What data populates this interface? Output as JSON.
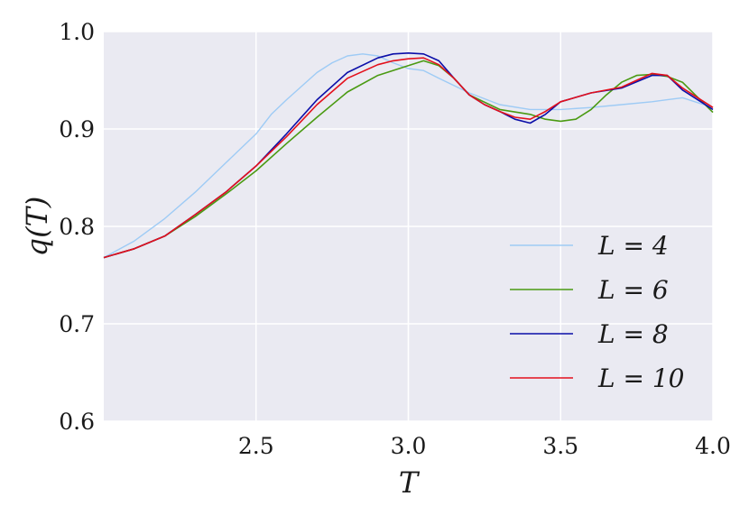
{
  "chart_data": {
    "type": "line",
    "title": "",
    "xlabel": "T",
    "ylabel": "q(T)",
    "xlim": [
      2.0,
      4.0
    ],
    "ylim": [
      0.6,
      1.0
    ],
    "xticks": [
      2.5,
      3.0,
      3.5,
      4.0
    ],
    "xtick_labels": [
      "2.5",
      "3.0",
      "3.5",
      "4.0"
    ],
    "yticks": [
      0.6,
      0.7,
      0.8,
      0.9,
      1.0
    ],
    "ytick_labels": [
      "0.6",
      "0.7",
      "0.8",
      "0.9",
      "1.0"
    ],
    "grid": true,
    "background": "#eaeaf2",
    "grid_color": "#ffffff",
    "legend_position": "lower-right",
    "series": [
      {
        "name": "L = 4",
        "color": "#9ecbf5",
        "x": [
          2.0,
          2.1,
          2.2,
          2.3,
          2.4,
          2.5,
          2.55,
          2.6,
          2.7,
          2.75,
          2.8,
          2.85,
          2.9,
          2.95,
          3.0,
          3.05,
          3.1,
          3.2,
          3.3,
          3.4,
          3.5,
          3.6,
          3.7,
          3.8,
          3.85,
          3.9,
          4.0
        ],
        "y": [
          0.768,
          0.785,
          0.808,
          0.835,
          0.865,
          0.895,
          0.915,
          0.93,
          0.958,
          0.968,
          0.975,
          0.977,
          0.975,
          0.968,
          0.962,
          0.96,
          0.952,
          0.937,
          0.925,
          0.92,
          0.92,
          0.922,
          0.925,
          0.928,
          0.93,
          0.932,
          0.922
        ]
      },
      {
        "name": "L = 6",
        "color": "#4a9a12",
        "x": [
          2.0,
          2.1,
          2.2,
          2.3,
          2.4,
          2.5,
          2.6,
          2.7,
          2.8,
          2.9,
          3.0,
          3.05,
          3.1,
          3.15,
          3.2,
          3.3,
          3.4,
          3.45,
          3.5,
          3.55,
          3.6,
          3.65,
          3.7,
          3.75,
          3.8,
          3.85,
          3.9,
          4.0
        ],
        "y": [
          0.768,
          0.777,
          0.79,
          0.81,
          0.833,
          0.857,
          0.885,
          0.912,
          0.938,
          0.955,
          0.965,
          0.97,
          0.965,
          0.952,
          0.935,
          0.92,
          0.915,
          0.91,
          0.908,
          0.91,
          0.92,
          0.935,
          0.948,
          0.955,
          0.956,
          0.954,
          0.948,
          0.917
        ]
      },
      {
        "name": "L = 8",
        "color": "#0b0ea8",
        "x": [
          2.0,
          2.1,
          2.2,
          2.3,
          2.4,
          2.5,
          2.6,
          2.7,
          2.8,
          2.9,
          2.95,
          3.0,
          3.05,
          3.1,
          3.15,
          3.2,
          3.25,
          3.3,
          3.35,
          3.4,
          3.45,
          3.5,
          3.6,
          3.7,
          3.8,
          3.85,
          3.9,
          4.0
        ],
        "y": [
          0.768,
          0.777,
          0.79,
          0.812,
          0.835,
          0.862,
          0.895,
          0.93,
          0.958,
          0.973,
          0.977,
          0.978,
          0.977,
          0.97,
          0.952,
          0.935,
          0.925,
          0.918,
          0.91,
          0.906,
          0.915,
          0.928,
          0.937,
          0.942,
          0.955,
          0.955,
          0.94,
          0.92
        ]
      },
      {
        "name": "L = 10",
        "color": "#e3101c",
        "x": [
          2.0,
          2.1,
          2.2,
          2.3,
          2.4,
          2.5,
          2.6,
          2.7,
          2.8,
          2.9,
          2.95,
          3.0,
          3.05,
          3.1,
          3.15,
          3.2,
          3.25,
          3.3,
          3.35,
          3.4,
          3.45,
          3.5,
          3.6,
          3.7,
          3.8,
          3.85,
          3.9,
          4.0
        ],
        "y": [
          0.768,
          0.777,
          0.79,
          0.812,
          0.835,
          0.862,
          0.892,
          0.925,
          0.952,
          0.966,
          0.97,
          0.972,
          0.973,
          0.966,
          0.952,
          0.935,
          0.925,
          0.918,
          0.912,
          0.91,
          0.918,
          0.928,
          0.937,
          0.943,
          0.957,
          0.955,
          0.942,
          0.922
        ]
      }
    ]
  }
}
